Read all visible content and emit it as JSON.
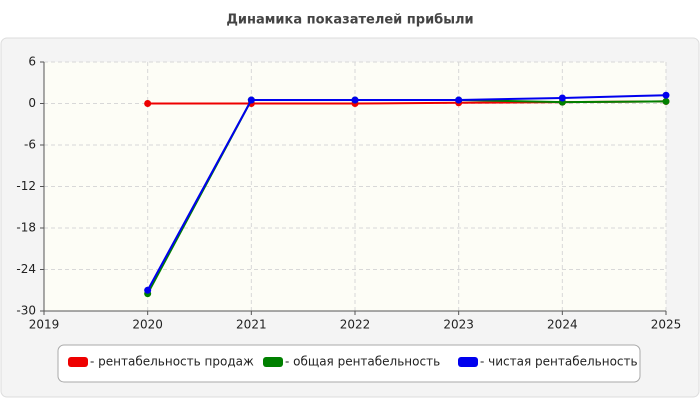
{
  "chart_data": {
    "type": "line",
    "title": "Динамика показателей прибыли",
    "x": [
      2020,
      2021,
      2022,
      2023,
      2024,
      2025
    ],
    "xlim": [
      2019,
      2025
    ],
    "xticks": [
      2019,
      2020,
      2021,
      2022,
      2023,
      2024,
      2025
    ],
    "ylim": [
      -30,
      6
    ],
    "yticks": [
      6,
      0,
      -6,
      -12,
      -18,
      -24,
      -30
    ],
    "grid": true,
    "series": [
      {
        "name": "- рентабельность продаж",
        "color": "#ee0000",
        "values": [
          0,
          0,
          0,
          0.1,
          0.2,
          0.3
        ]
      },
      {
        "name": "- общая рентабельность",
        "color": "#008000",
        "values": [
          -27.5,
          0.5,
          0.5,
          0.5,
          0.2,
          0.3
        ]
      },
      {
        "name": "- чистая рентабельность",
        "color": "#0000ee",
        "values": [
          -27,
          0.5,
          0.5,
          0.5,
          0.8,
          1.2
        ]
      }
    ]
  }
}
